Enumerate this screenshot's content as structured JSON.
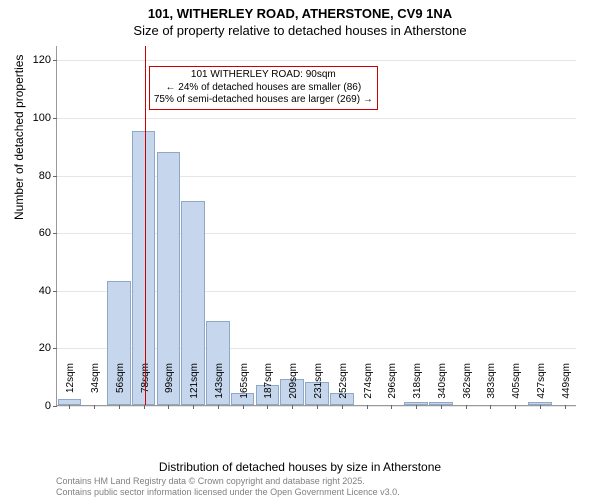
{
  "title": {
    "line1": "101, WITHERLEY ROAD, ATHERSTONE, CV9 1NA",
    "line2": "Size of property relative to detached houses in Atherstone"
  },
  "chart": {
    "type": "histogram",
    "y_axis": {
      "label": "Number of detached properties",
      "min": 0,
      "max": 125,
      "ticks": [
        0,
        20,
        40,
        60,
        80,
        100,
        120
      ],
      "label_fontsize": 12,
      "tick_fontsize": 11,
      "grid_color": "#e6e6e6"
    },
    "x_axis": {
      "label": "Distribution of detached houses by size in Atherstone",
      "categories": [
        "12sqm",
        "34sqm",
        "56sqm",
        "78sqm",
        "99sqm",
        "121sqm",
        "143sqm",
        "165sqm",
        "187sqm",
        "209sqm",
        "231sqm",
        "252sqm",
        "274sqm",
        "296sqm",
        "318sqm",
        "340sqm",
        "362sqm",
        "383sqm",
        "405sqm",
        "427sqm",
        "449sqm"
      ],
      "label_fontsize": 12,
      "tick_fontsize": 10
    },
    "bars": {
      "values": [
        2,
        0,
        43,
        95,
        88,
        71,
        29,
        4,
        7,
        9,
        8,
        4,
        0,
        0,
        1,
        1,
        0,
        0,
        0,
        1,
        0
      ],
      "fill": "#c5d6ed",
      "stroke": "#8fa8c8",
      "width_ratio": 0.95
    },
    "reference": {
      "category_index": 3,
      "fraction_within_bar": 0.55,
      "color": "#cc0000",
      "annotation": {
        "line1": "101 WITHERLEY ROAD: 90sqm",
        "line2": "← 24% of detached houses are smaller (86)",
        "line3": "75% of semi-detached houses are larger (269) →",
        "border_color": "#cc0000",
        "background": "#ffffff",
        "fontsize": 10
      }
    },
    "background_color": "#ffffff"
  },
  "footer": {
    "line1": "Contains HM Land Registry data © Crown copyright and database right 2025.",
    "line2": "Contains public sector information licensed under the Open Government Licence v3.0.",
    "color": "#808080",
    "fontsize": 9
  }
}
